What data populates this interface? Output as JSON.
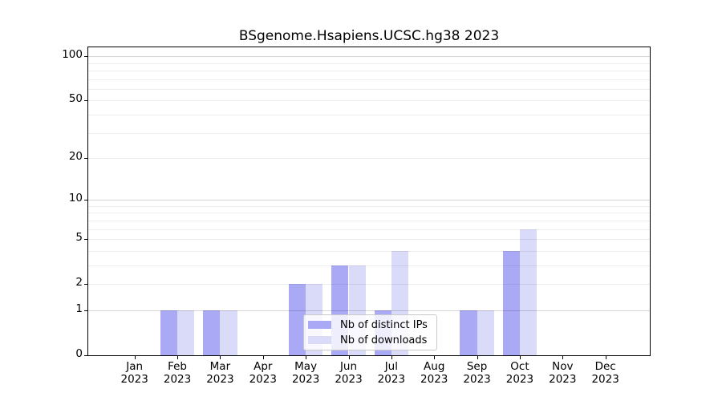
{
  "title": "BSgenome.Hsapiens.UCSC.hg38 2023",
  "chart_data": {
    "type": "bar",
    "title": "BSgenome.Hsapiens.UCSC.hg38 2023",
    "x_categories": [
      "Jan",
      "Feb",
      "Mar",
      "Apr",
      "May",
      "Jun",
      "Jul",
      "Aug",
      "Sep",
      "Oct",
      "Nov",
      "Dec"
    ],
    "x_sub_label": "2023",
    "series": [
      {
        "name": "Nb of distinct IPs",
        "color": "#a9a9f6",
        "values": [
          0,
          1,
          1,
          0,
          2,
          3,
          1,
          0,
          1,
          4,
          0,
          0
        ]
      },
      {
        "name": "Nb of downloads",
        "color": "#dadaf9",
        "values": [
          0,
          1,
          1,
          0,
          2,
          3,
          4,
          0,
          1,
          6,
          0,
          0
        ]
      }
    ],
    "y_axis": {
      "scale": "log1p",
      "tick_values": [
        0,
        1,
        2,
        5,
        10,
        20,
        50,
        100
      ],
      "tick_labels": [
        "0",
        "1",
        "2",
        "5",
        "10",
        "20",
        "50",
        "100"
      ],
      "minor_grid_values": [
        2,
        3,
        4,
        5,
        6,
        7,
        8,
        9,
        20,
        30,
        40,
        50,
        60,
        70,
        80,
        90
      ],
      "major_grid_values": [
        1,
        10,
        100
      ],
      "ylim": [
        0,
        117
      ]
    },
    "legend": {
      "entries": [
        "Nb of distinct IPs",
        "Nb of downloads"
      ],
      "position": "lower center"
    },
    "grid": true
  },
  "colors": {
    "background": "#ffffff",
    "spine": "#000000",
    "distinct_ips": "#a9a9f6",
    "downloads": "#dadaf9",
    "major_grid": "#d6d6d6",
    "minor_grid": "#ededed",
    "legend_border": "#c9c9c9"
  }
}
